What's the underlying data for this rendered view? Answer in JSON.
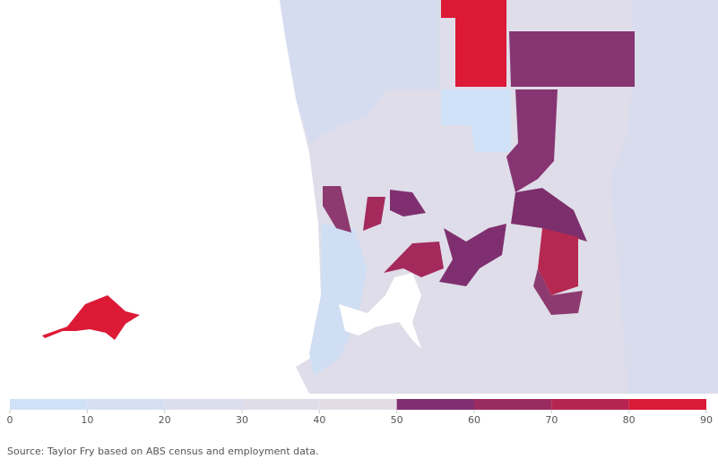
{
  "legend": {
    "ticks": [
      0,
      10,
      20,
      30,
      40,
      50,
      60,
      70,
      80,
      90
    ],
    "colors": [
      "#cfe1f6",
      "#d6dff1",
      "#dbdeec",
      "#dfdde8",
      "#e3dce5",
      "#7f2f6f",
      "#9a2b60",
      "#b6254f",
      "#d91b38"
    ]
  },
  "source": "Source: Taylor Fry based on ABS census and employment data."
}
